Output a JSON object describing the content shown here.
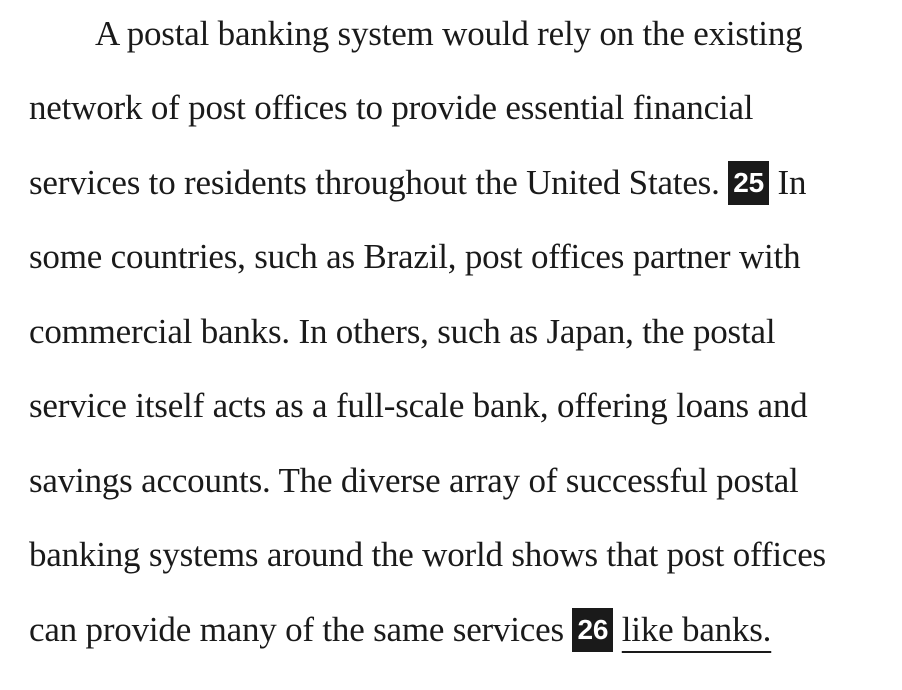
{
  "passage": {
    "lines": [
      "A postal banking system would rely on the existing",
      "network of post offices to provide essential financial",
      "services to residents throughout the United States.",
      "some countries, such as Brazil, post offices partner with",
      "commercial banks. In others, such as Japan, the postal",
      "service itself acts as a full-scale bank, offering loans and",
      "savings accounts. The diverse array of successful postal",
      "banking systems around the world shows that post offices",
      "can provide many of the same services"
    ],
    "line3_after_marker": "In",
    "marker_25": "25",
    "marker_26": "26",
    "underlined_text": "like banks."
  }
}
